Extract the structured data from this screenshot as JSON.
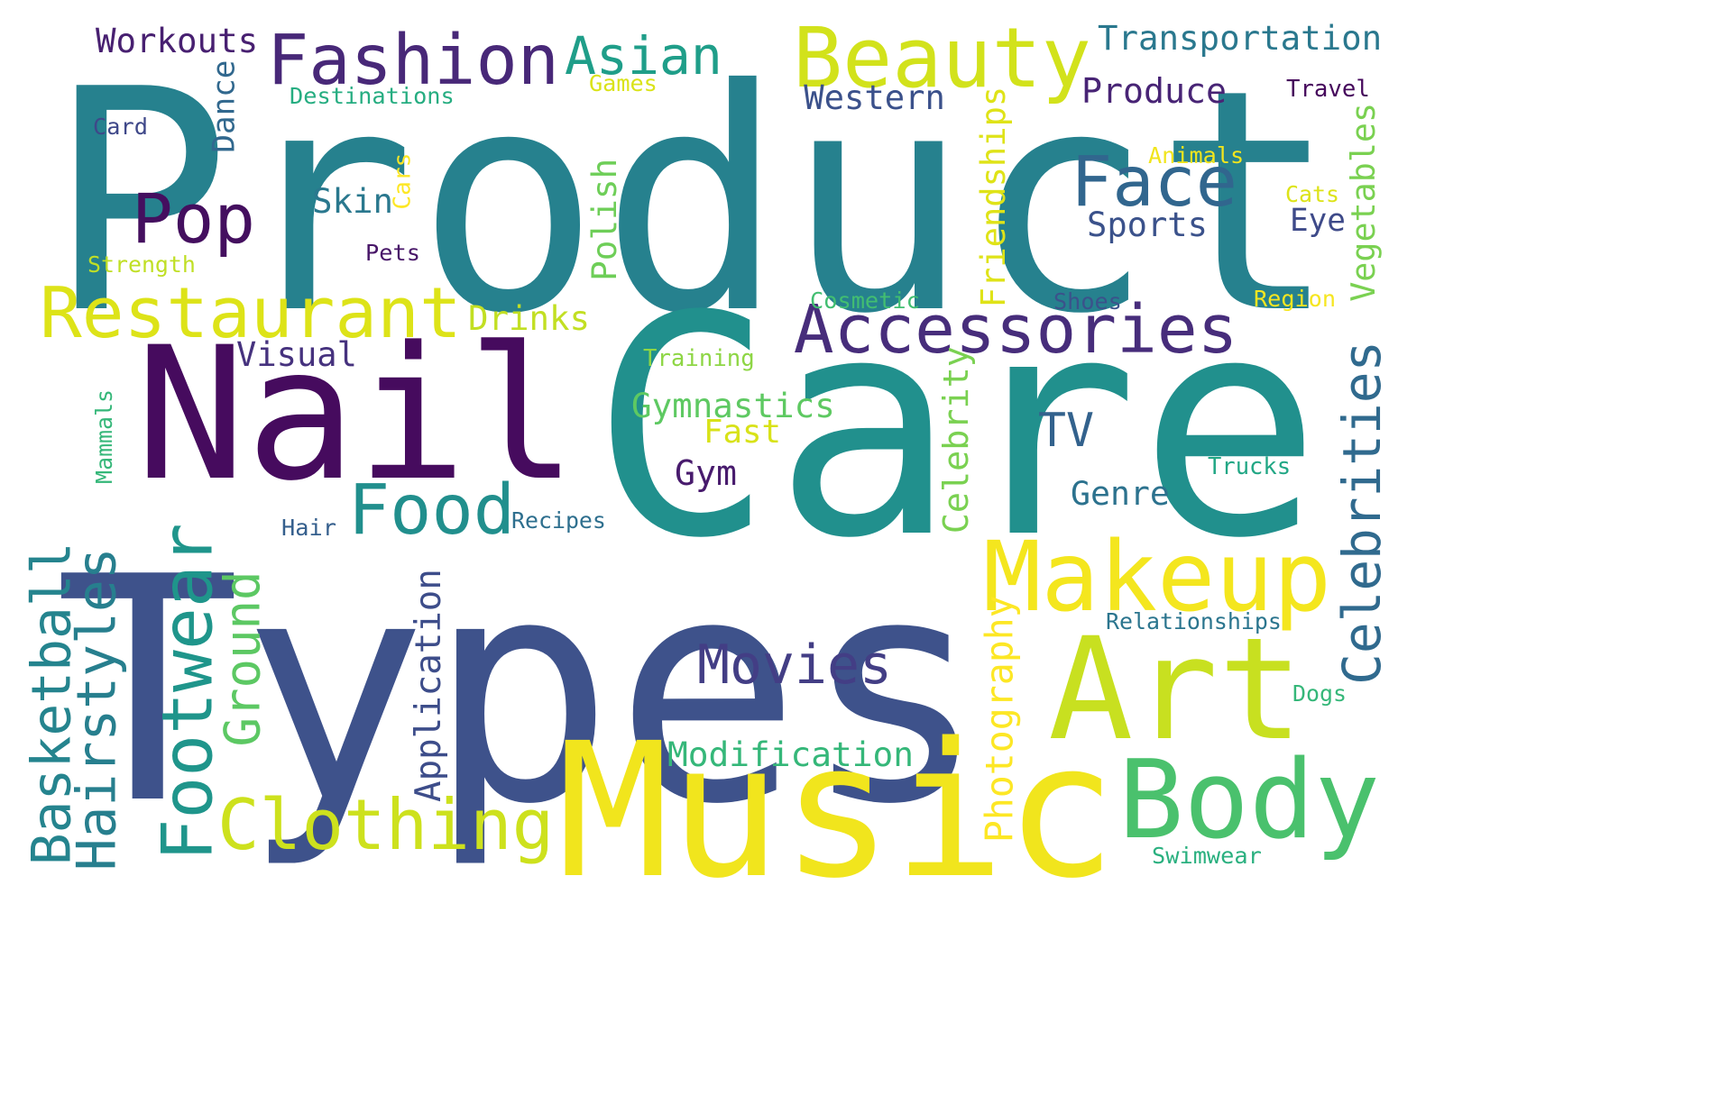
{
  "word_cloud": {
    "words": [
      {
        "text": "Product",
        "color": "#26818e"
      },
      {
        "text": "Care",
        "color": "#21908d"
      },
      {
        "text": "Types",
        "color": "#3e528b"
      },
      {
        "text": "Nail",
        "color": "#460b5e"
      },
      {
        "text": "Music",
        "color": "#f1e51d"
      },
      {
        "text": "Art",
        "color": "#c8e020"
      },
      {
        "text": "Body",
        "color": "#4ac16d"
      },
      {
        "text": "Makeup",
        "color": "#f4e61e"
      },
      {
        "text": "Beauty",
        "color": "#d2e21b"
      },
      {
        "text": "Fashion",
        "color": "#482878"
      },
      {
        "text": "Restaurant",
        "color": "#dde318"
      },
      {
        "text": "Accessories",
        "color": "#472d7b"
      },
      {
        "text": "Face",
        "color": "#31668e"
      },
      {
        "text": "Asian",
        "color": "#1f9e89"
      },
      {
        "text": "Pop",
        "color": "#440f5f"
      },
      {
        "text": "Food",
        "color": "#218f8d"
      },
      {
        "text": "Clothing",
        "color": "#cde11d"
      },
      {
        "text": "Footwear",
        "color": "#1f958b"
      },
      {
        "text": "Celebrities",
        "color": "#306a8e"
      },
      {
        "text": "Hairstyles",
        "color": "#277f8e"
      },
      {
        "text": "Basketball",
        "color": "#25848e"
      },
      {
        "text": "Ground",
        "color": "#5cc863"
      },
      {
        "text": "Movies",
        "color": "#433e85"
      },
      {
        "text": "Application",
        "color": "#3d4d8a"
      },
      {
        "text": "Photography",
        "color": "#fde725"
      },
      {
        "text": "Celebrity",
        "color": "#7ad151"
      },
      {
        "text": "Friendships",
        "color": "#dfe318"
      },
      {
        "text": "Vegetables",
        "color": "#7ad151"
      },
      {
        "text": "Polish",
        "color": "#6ece58"
      },
      {
        "text": "Dance",
        "color": "#31688e"
      },
      {
        "text": "Cars",
        "color": "#fde725"
      },
      {
        "text": "Mammals",
        "color": "#35b779"
      },
      {
        "text": "TV",
        "color": "#33628d"
      },
      {
        "text": "Genre",
        "color": "#2c728e"
      },
      {
        "text": "Gymnastics",
        "color": "#5ec962"
      },
      {
        "text": "Modification",
        "color": "#35b779"
      },
      {
        "text": "Transportation",
        "color": "#2a788e"
      },
      {
        "text": "Western",
        "color": "#3b518b"
      },
      {
        "text": "Produce",
        "color": "#482475"
      },
      {
        "text": "Workouts",
        "color": "#482071"
      },
      {
        "text": "Drinks",
        "color": "#c2df23"
      },
      {
        "text": "Sports",
        "color": "#3b528b"
      },
      {
        "text": "Skin",
        "color": "#2a788e"
      },
      {
        "text": "Visual",
        "color": "#46327e"
      },
      {
        "text": "Fast",
        "color": "#d8e219"
      },
      {
        "text": "Gym",
        "color": "#481b6d"
      },
      {
        "text": "Eye",
        "color": "#3e4a89"
      },
      {
        "text": "Destinations",
        "color": "#26ad81"
      },
      {
        "text": "Games",
        "color": "#dae319"
      },
      {
        "text": "Travel",
        "color": "#46085c"
      },
      {
        "text": "Card",
        "color": "#3f4889"
      },
      {
        "text": "Animals",
        "color": "#f1e51d"
      },
      {
        "text": "Cats",
        "color": "#dde318"
      },
      {
        "text": "Strength",
        "color": "#c0df25"
      },
      {
        "text": "Pets",
        "color": "#481668"
      },
      {
        "text": "Cosmetic",
        "color": "#42be71"
      },
      {
        "text": "Shoes",
        "color": "#3b528b"
      },
      {
        "text": "Region",
        "color": "#f6e620"
      },
      {
        "text": "Training",
        "color": "#8ed645"
      },
      {
        "text": "Trucks",
        "color": "#22a785"
      },
      {
        "text": "Hair",
        "color": "#355f8d"
      },
      {
        "text": "Recipes",
        "color": "#2e6f8e"
      },
      {
        "text": "Relationships",
        "color": "#2b758e"
      },
      {
        "text": "Dogs",
        "color": "#35b779"
      },
      {
        "text": "Swimwear",
        "color": "#2ab07f"
      }
    ]
  }
}
